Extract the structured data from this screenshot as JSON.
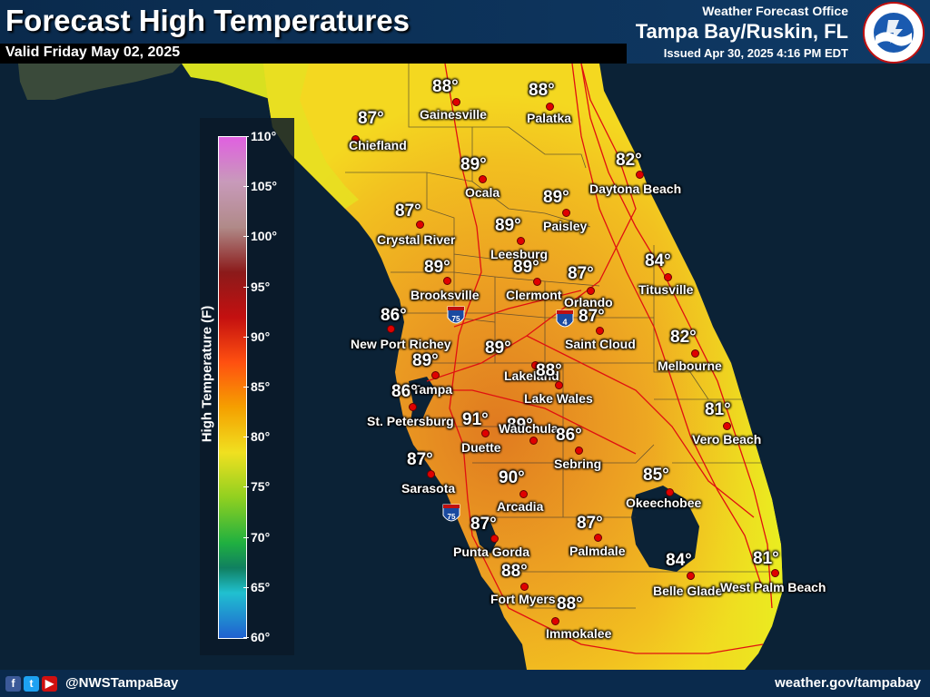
{
  "header": {
    "title": "Forecast High Temperatures",
    "valid": "Valid Friday May 02, 2025",
    "wfo_label": "Weather Forecast Office",
    "office": "Tampa Bay/Ruskin, FL",
    "issued": "Issued Apr 30, 2025 4:16 PM EDT",
    "logo_text": "NATIONAL WEATHER SERVICE"
  },
  "legend": {
    "title": "High Temperature (F)",
    "ticks": [
      "110°",
      "105°",
      "100°",
      "95°",
      "90°",
      "85°",
      "80°",
      "75°",
      "70°",
      "65°",
      "60°"
    ]
  },
  "cities": [
    {
      "name": "Gainesville",
      "temp": "88°"
    },
    {
      "name": "Palatka",
      "temp": "88°"
    },
    {
      "name": "Chiefland",
      "temp": "87°"
    },
    {
      "name": "Ocala",
      "temp": "89°"
    },
    {
      "name": "Daytona Beach",
      "temp": "82°"
    },
    {
      "name": "Paisley",
      "temp": "89°"
    },
    {
      "name": "Crystal River",
      "temp": "87°"
    },
    {
      "name": "Leesburg",
      "temp": "89°"
    },
    {
      "name": "Brooksville",
      "temp": "89°"
    },
    {
      "name": "Clermont",
      "temp": "89°"
    },
    {
      "name": "Orlando",
      "temp": "87°"
    },
    {
      "name": "Titusville",
      "temp": "84°"
    },
    {
      "name": "New Port Richey",
      "temp": "86°"
    },
    {
      "name": "Saint Cloud",
      "temp": "87°"
    },
    {
      "name": "Melbourne",
      "temp": "82°"
    },
    {
      "name": "Tampa",
      "temp": "89°"
    },
    {
      "name": "Lakeland",
      "temp": "89°"
    },
    {
      "name": "Lake Wales",
      "temp": "88°"
    },
    {
      "name": "St. Petersburg",
      "temp": "86°"
    },
    {
      "name": "Duette",
      "temp": "91°"
    },
    {
      "name": "Wauchula",
      "temp": "89°"
    },
    {
      "name": "Vero Beach",
      "temp": "81°"
    },
    {
      "name": "Sebring",
      "temp": "86°"
    },
    {
      "name": "Sarasota",
      "temp": "87°"
    },
    {
      "name": "Arcadia",
      "temp": "90°"
    },
    {
      "name": "Okeechobee",
      "temp": "85°"
    },
    {
      "name": "Punta Gorda",
      "temp": "87°"
    },
    {
      "name": "Palmdale",
      "temp": "87°"
    },
    {
      "name": "Fort Myers",
      "temp": "88°"
    },
    {
      "name": "Belle Glade",
      "temp": "84°"
    },
    {
      "name": "West Palm Beach",
      "temp": "81°"
    },
    {
      "name": "Immokalee",
      "temp": "88°"
    }
  ],
  "highways": [
    {
      "label": "75"
    },
    {
      "label": "4"
    },
    {
      "label": "75"
    }
  ],
  "footer": {
    "handle": "@NWSTampaBay",
    "site": "weather.gov/tampabay",
    "social_icons": [
      "facebook-icon",
      "twitter-icon",
      "youtube-icon"
    ]
  },
  "colors": {
    "header_bg": "#0f3a66",
    "water": "#0b2236",
    "land_hot": "#e58a1a",
    "land_warm": "#f0b020",
    "land_cool": "#f5e020",
    "city_dot": "#e00000"
  }
}
